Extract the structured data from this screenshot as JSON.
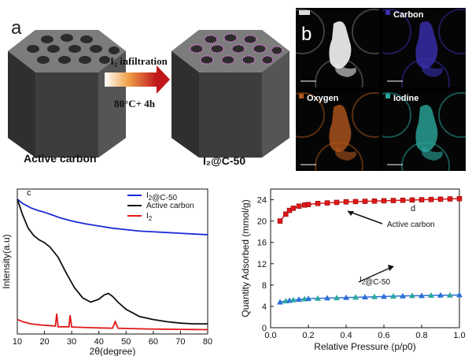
{
  "panel_a": {
    "label": "a",
    "left_caption": "Active carbon",
    "right_caption": "I₂@C-50",
    "arrow_top": "I₂ infiltration",
    "arrow_bottom": "80°C+ 4h"
  },
  "panel_b": {
    "label": "b",
    "maps": [
      {
        "label": "",
        "color": "#6b6b6b"
      },
      {
        "label": "Carbon",
        "color": "#3a2fb0"
      },
      {
        "label": "Oxygen",
        "color": "#b0551c"
      },
      {
        "label": "Iodine",
        "color": "#2aa89c"
      }
    ]
  },
  "chart_data": [
    {
      "type": "line",
      "label": "c",
      "xlabel": "2θ(degree)",
      "ylabel": "Intensity(a.u)",
      "xlim": [
        10,
        80
      ],
      "xticks": [
        "10",
        "20",
        "30",
        "40",
        "50",
        "60",
        "70",
        "80"
      ],
      "legend": [
        "I₂@C-50",
        "Active carbon",
        "I₂"
      ],
      "series": [
        {
          "name": "I₂@C-50",
          "color": "#1a2bd6",
          "x": [
            10,
            12,
            15,
            18,
            20,
            23,
            26,
            30,
            35,
            40,
            45,
            50,
            55,
            60,
            65,
            70,
            75,
            80
          ],
          "y": [
            0.93,
            0.9,
            0.87,
            0.85,
            0.84,
            0.82,
            0.8,
            0.78,
            0.76,
            0.745,
            0.73,
            0.72,
            0.71,
            0.705,
            0.7,
            0.695,
            0.69,
            0.685
          ]
        },
        {
          "name": "Active carbon",
          "color": "#111111",
          "x": [
            10,
            12,
            14,
            16,
            18,
            20,
            22,
            25,
            28,
            31,
            34,
            37,
            40,
            42,
            43.5,
            45,
            47,
            50,
            55,
            60,
            65,
            70,
            75,
            80
          ],
          "y": [
            0.93,
            0.82,
            0.73,
            0.68,
            0.65,
            0.63,
            0.6,
            0.53,
            0.42,
            0.32,
            0.25,
            0.22,
            0.24,
            0.27,
            0.28,
            0.26,
            0.22,
            0.17,
            0.12,
            0.1,
            0.085,
            0.075,
            0.07,
            0.07
          ]
        },
        {
          "name": "I₂",
          "color": "#e01818",
          "x": [
            10,
            12,
            15,
            20,
            24,
            24.5,
            25,
            29,
            29.4,
            30,
            35,
            40,
            45,
            46,
            47,
            50,
            55,
            60,
            65,
            70,
            75,
            80
          ],
          "y": [
            0.1,
            0.085,
            0.07,
            0.06,
            0.055,
            0.14,
            0.05,
            0.05,
            0.13,
            0.048,
            0.045,
            0.042,
            0.04,
            0.085,
            0.04,
            0.038,
            0.036,
            0.034,
            0.033,
            0.032,
            0.031,
            0.03
          ]
        }
      ]
    },
    {
      "type": "line",
      "label": "d",
      "xlabel": "Relative Pressure (p/p0)",
      "ylabel": "Quantity Adsorbed (mmol/g)",
      "xlim": [
        0.0,
        1.0
      ],
      "ylim": [
        0,
        26
      ],
      "xticks": [
        "0.0",
        "0.2",
        "0.4",
        "0.6",
        "0.8",
        "1.0"
      ],
      "yticks": [
        "0",
        "4",
        "8",
        "12",
        "16",
        "20",
        "24"
      ],
      "annotations": [
        "Active carbon",
        "I₂@C-50"
      ],
      "series": [
        {
          "name": "Active carbon",
          "color": "#e01818",
          "x": [
            0.05,
            0.08,
            0.1,
            0.12,
            0.15,
            0.18,
            0.2,
            0.25,
            0.3,
            0.35,
            0.4,
            0.45,
            0.5,
            0.55,
            0.6,
            0.65,
            0.7,
            0.75,
            0.8,
            0.85,
            0.9,
            0.95,
            1.0
          ],
          "y": [
            20.0,
            21.3,
            22.0,
            22.4,
            22.8,
            23.0,
            23.1,
            23.3,
            23.4,
            23.5,
            23.6,
            23.65,
            23.7,
            23.75,
            23.8,
            23.85,
            23.9,
            23.95,
            24.0,
            24.05,
            24.1,
            24.15,
            24.2
          ]
        },
        {
          "name": "I₂@C-50",
          "color": "#2a6fd6",
          "x": [
            0.05,
            0.08,
            0.1,
            0.12,
            0.15,
            0.18,
            0.2,
            0.25,
            0.3,
            0.35,
            0.4,
            0.45,
            0.5,
            0.55,
            0.6,
            0.65,
            0.7,
            0.75,
            0.8,
            0.85,
            0.9,
            0.95,
            1.0
          ],
          "y": [
            4.8,
            5.0,
            5.1,
            5.2,
            5.3,
            5.4,
            5.45,
            5.5,
            5.55,
            5.6,
            5.65,
            5.7,
            5.75,
            5.8,
            5.85,
            5.9,
            5.95,
            6.0,
            6.0,
            6.05,
            6.1,
            6.1,
            6.15
          ]
        }
      ]
    }
  ]
}
